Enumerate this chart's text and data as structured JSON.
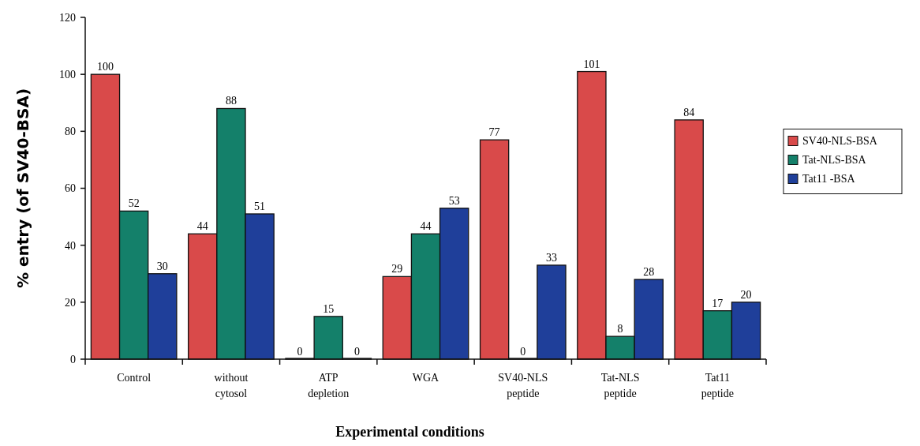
{
  "chart_data": {
    "type": "bar",
    "xlabel": "Experimental conditions",
    "ylabel": "% entry (of SV40-BSA)",
    "categories": [
      "Control",
      "without\ncytosol",
      "ATP\ndepletion",
      "WGA",
      "SV40-NLS\npeptide",
      "Tat-NLS\npeptide",
      "Tat11\npeptide"
    ],
    "series": [
      {
        "name": "SV40-NLS-BSA",
        "color": "#d94a4a",
        "values": [
          100,
          44,
          0,
          29,
          77,
          101,
          84
        ]
      },
      {
        "name": "Tat-NLS-BSA",
        "color": "#14806a",
        "values": [
          52,
          88,
          15,
          44,
          0,
          8,
          17
        ]
      },
      {
        "name": "Tat11 -BSA",
        "color": "#1f3f9a",
        "values": [
          30,
          51,
          0,
          53,
          33,
          28,
          20
        ]
      }
    ],
    "ylim": [
      0,
      120
    ],
    "yticks": [
      0,
      20,
      40,
      60,
      80,
      100,
      120
    ],
    "data_labels": true,
    "legend": "right",
    "grid": false
  }
}
